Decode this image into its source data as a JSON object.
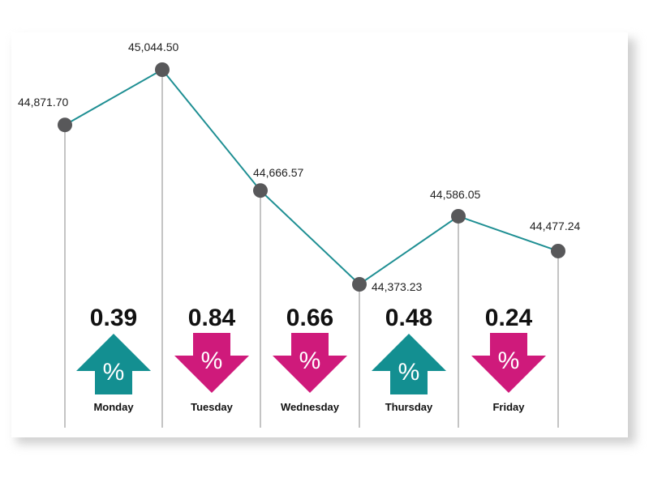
{
  "chart_data": {
    "type": "line",
    "categories": [
      "Monday",
      "Tuesday",
      "Wednesday",
      "Thursday",
      "Friday"
    ],
    "closes": [
      44871.7,
      45044.5,
      44666.57,
      44373.23,
      44586.05,
      44477.24
    ],
    "close_labels": [
      "44,871.70",
      "45,044.50",
      "44,666.57",
      "44,373.23",
      "44,586.05",
      "44,477.24"
    ],
    "changes": [
      {
        "day": "Monday",
        "percent": "0.39",
        "direction": "up"
      },
      {
        "day": "Tuesday",
        "percent": "0.84",
        "direction": "down"
      },
      {
        "day": "Wednesday",
        "percent": "0.66",
        "direction": "down"
      },
      {
        "day": "Thursday",
        "percent": "0.48",
        "direction": "up"
      },
      {
        "day": "Friday",
        "percent": "0.24",
        "direction": "down"
      }
    ],
    "ylim": [
      44300,
      45100
    ],
    "grid": false,
    "arrow_symbol": "%",
    "colors": {
      "line": "#1f8f93",
      "marker": "#58585a",
      "up": "#138f91",
      "down": "#cf1a7b",
      "guide": "#8a8a8a"
    }
  }
}
